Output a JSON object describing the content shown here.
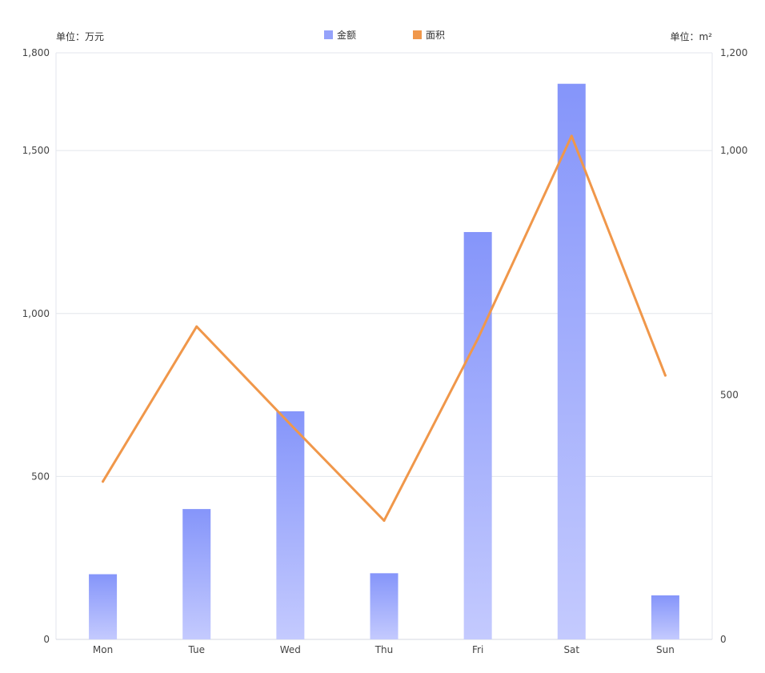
{
  "units": {
    "left": "单位：万元",
    "right": "单位：m²"
  },
  "chart_data": {
    "type": "bar",
    "categories": [
      "Mon",
      "Tue",
      "Wed",
      "Thu",
      "Fri",
      "Sat",
      "Sun"
    ],
    "series": [
      {
        "name": "金额",
        "type": "bar",
        "axis": "left",
        "color": "#8595fa",
        "values": [
          200,
          400,
          700,
          203,
          1250,
          1705,
          135
        ]
      },
      {
        "name": "面积",
        "type": "line",
        "axis": "right",
        "color": "#f0974a",
        "values": [
          323,
          640,
          440,
          243,
          615,
          1030,
          540
        ]
      }
    ],
    "y_left": {
      "min": 0,
      "max": 1800,
      "ticks": [
        0,
        500,
        1000,
        1500,
        1800
      ],
      "tick_labels": [
        "0",
        "500",
        "1,000",
        "1,500",
        "1,800"
      ]
    },
    "y_right": {
      "min": 0,
      "max": 1200,
      "ticks": [
        0,
        500,
        1000,
        1200
      ],
      "tick_labels": [
        "0",
        "500",
        "1,000",
        "1,200"
      ]
    },
    "grid": true,
    "legend_position": "top-center"
  }
}
